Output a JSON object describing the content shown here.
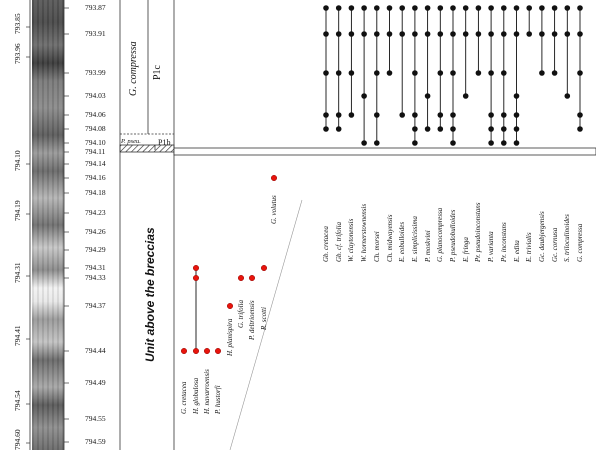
{
  "depths_left": [
    {
      "label": "793.85",
      "depth": 793.85
    },
    {
      "label": "793.96",
      "depth": 793.96
    },
    {
      "label": "794.10",
      "depth": 794.1
    },
    {
      "label": "794.19",
      "depth": 794.19
    },
    {
      "label": "794.31",
      "depth": 794.31
    },
    {
      "label": "794.41",
      "depth": 794.41
    },
    {
      "label": "794.54",
      "depth": 794.54
    },
    {
      "label": "794.60",
      "depth": 794.6
    }
  ],
  "depths_right": [
    "793.87",
    "793.91",
    "793.99",
    "794.03",
    "794.06",
    "794.08",
    "794.10",
    "794.11",
    "794.14",
    "794.16",
    "794.18",
    "794.23",
    "794.26",
    "794.29",
    "794.31",
    "794.33",
    "794.37",
    "794.44",
    "794.49",
    "794.55",
    "794.59"
  ],
  "zones": {
    "g_compressa": "G. compressa",
    "p_pseu": "P. pseu.",
    "p1c": "P1c",
    "p1b": "P1b",
    "unit_label": "Unit above the breccias"
  },
  "chart_data": {
    "type": "scatter",
    "title": "",
    "xlabel": "",
    "ylabel": "",
    "upper_species": [
      "Gb. cretacea",
      "Gb. cf. trifolia",
      "W. claytonensis",
      "W. hornerstownensis",
      "Ch. morsei",
      "Ch. midwayensis",
      "E. eobulloides",
      "E. simplicissima",
      "P. moskvini",
      "G. planocompressa",
      "P. pseudobulloides",
      "E. fringa",
      "Pr. pseudoinconstans",
      "P. varianta",
      "Pr. inconstans",
      "E. edita",
      "E. trivialis",
      "Gc. daubjergensis",
      "Gc. cornusa",
      "S. triloculinoides",
      "G. compressa"
    ],
    "upper_occurrences": [
      {
        "species": "Gb. cretacea",
        "depths": [
          793.87,
          793.91,
          793.99,
          794.06,
          794.08
        ]
      },
      {
        "species": "Gb. cf. trifolia",
        "depths": [
          793.87,
          793.91,
          793.99,
          794.06,
          794.08
        ]
      },
      {
        "species": "W. claytonensis",
        "depths": [
          793.87,
          793.91,
          793.99,
          794.06
        ]
      },
      {
        "species": "W. hornerstownensis",
        "depths": [
          793.87,
          793.91,
          794.03,
          794.1
        ]
      },
      {
        "species": "Ch. morsei",
        "depths": [
          793.87,
          793.91,
          793.99,
          794.06,
          794.1
        ]
      },
      {
        "species": "Ch. midwayensis",
        "depths": [
          793.87,
          793.91,
          793.99
        ]
      },
      {
        "species": "E. eobulloides",
        "depths": [
          793.87,
          793.91,
          794.06
        ]
      },
      {
        "species": "E. simplicissima",
        "depths": [
          793.87,
          793.91,
          793.99,
          794.06,
          794.08,
          794.1
        ]
      },
      {
        "species": "P. moskvini",
        "depths": [
          793.87,
          793.91,
          794.03,
          794.08
        ]
      },
      {
        "species": "G. planocompressa",
        "depths": [
          793.87,
          793.91,
          793.99,
          794.06,
          794.08
        ]
      },
      {
        "species": "P. pseudobulloides",
        "depths": [
          793.87,
          793.91,
          793.99,
          794.06,
          794.08,
          794.1
        ]
      },
      {
        "species": "E. fringa",
        "depths": [
          793.87,
          793.91,
          794.03
        ]
      },
      {
        "species": "Pr. pseudoinconstans",
        "depths": [
          793.87,
          793.91,
          793.99
        ]
      },
      {
        "species": "P. varianta",
        "depths": [
          793.87,
          793.91,
          793.99,
          794.06,
          794.08,
          794.1
        ]
      },
      {
        "species": "Pr. inconstans",
        "depths": [
          793.87,
          793.91,
          793.99,
          794.06,
          794.08,
          794.1
        ]
      },
      {
        "species": "E. edita",
        "depths": [
          793.87,
          793.91,
          794.03,
          794.06,
          794.08,
          794.1
        ]
      },
      {
        "species": "E. trivialis",
        "depths": [
          793.87,
          793.91
        ]
      },
      {
        "species": "Gc. daubjergensis",
        "depths": [
          793.87,
          793.91,
          793.99
        ]
      },
      {
        "species": "Gc. cornusa",
        "depths": [
          793.87,
          793.91,
          793.99
        ]
      },
      {
        "species": "S. triloculinoides",
        "depths": [
          793.87,
          793.91,
          794.03
        ]
      },
      {
        "species": "G. compressa",
        "depths": [
          793.87,
          793.91,
          793.99,
          794.06,
          794.08
        ]
      }
    ],
    "lower_species": [
      "G. cretacea",
      "H. globulosa",
      "H. navarroensis",
      "P. hustorfi",
      "H. planispira",
      "G. trifolia",
      "P. deltrioensis",
      "R. scotti",
      "G. volutus"
    ],
    "lower_occurrences": [
      {
        "species": "G. cretacea",
        "depths": [
          794.44
        ]
      },
      {
        "species": "H. globulosa",
        "depths": [
          794.31,
          794.33,
          794.44
        ]
      },
      {
        "species": "H. navarroensis",
        "depths": [
          794.44
        ]
      },
      {
        "species": "P. hustorfi",
        "depths": [
          794.44
        ]
      },
      {
        "species": "H. planispira",
        "depths": [
          794.37
        ]
      },
      {
        "species": "G. trifolia",
        "depths": [
          794.33
        ]
      },
      {
        "species": "P. deltrioensis",
        "depths": [
          794.33
        ]
      },
      {
        "species": "R. scotti",
        "depths": [
          794.31
        ]
      },
      {
        "species": "G. volutus",
        "depths": [
          794.16
        ]
      }
    ],
    "colors": {
      "upper_dot": "#111111",
      "lower_dot": "#e8140c",
      "line": "#111111"
    }
  }
}
